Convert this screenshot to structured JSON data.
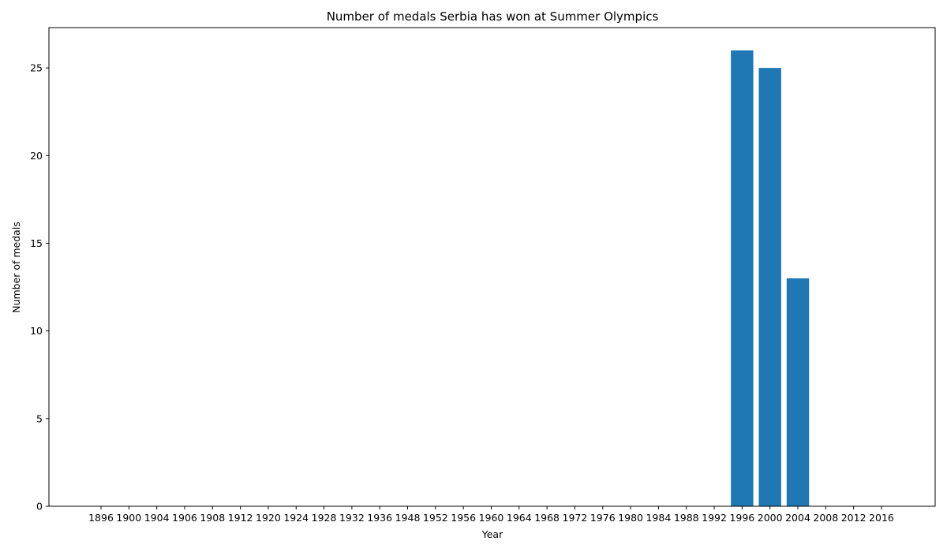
{
  "chart_data": {
    "type": "bar",
    "title": "Number of medals Serbia has won at Summer Olympics",
    "xlabel": "Year",
    "ylabel": "Number of medals",
    "categories": [
      "1896",
      "1900",
      "1904",
      "1906",
      "1908",
      "1912",
      "1920",
      "1924",
      "1928",
      "1932",
      "1936",
      "1948",
      "1952",
      "1956",
      "1960",
      "1964",
      "1968",
      "1972",
      "1976",
      "1980",
      "1984",
      "1988",
      "1992",
      "1996",
      "2000",
      "2004",
      "2008",
      "2012",
      "2016"
    ],
    "values": [
      0,
      0,
      0,
      0,
      0,
      0,
      0,
      0,
      0,
      0,
      0,
      0,
      0,
      0,
      0,
      0,
      0,
      0,
      0,
      0,
      0,
      0,
      0,
      26,
      25,
      13,
      0,
      0,
      0
    ],
    "ylim": [
      0,
      27.3
    ],
    "yticks": [
      0,
      5,
      10,
      15,
      20,
      25
    ],
    "grid": false,
    "bar_color": "#1f77b4"
  }
}
